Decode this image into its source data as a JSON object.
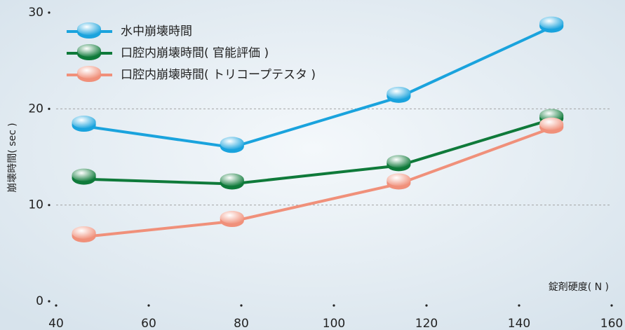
{
  "chart_data": {
    "type": "line",
    "x_label": "錠剤硬度( N )",
    "y_label": "崩壊時間( sec )",
    "xlim": [
      40,
      160
    ],
    "xticks": [
      40,
      60,
      80,
      100,
      120,
      140,
      160
    ],
    "ylim": [
      0,
      30
    ],
    "yticks": [
      0,
      10,
      20,
      30
    ],
    "grid": true,
    "legend": "top-left",
    "series": [
      {
        "name": "水中崩壊時間",
        "color": "#1aa3dd",
        "x": [
          46,
          78,
          114,
          147
        ],
        "values": [
          18.2,
          16.0,
          21.2,
          28.5
        ]
      },
      {
        "name": "口腔内崩壊時間( 官能評価 )",
        "color": "#0f7a3a",
        "x": [
          46,
          78,
          114,
          147
        ],
        "values": [
          12.7,
          12.2,
          14.1,
          18.9
        ]
      },
      {
        "name": "口腔内崩壊時間( トリコープテスタ )",
        "color": "#f0907a",
        "x": [
          46,
          78,
          114,
          147
        ],
        "values": [
          6.7,
          8.3,
          12.2,
          18.0
        ]
      }
    ]
  }
}
